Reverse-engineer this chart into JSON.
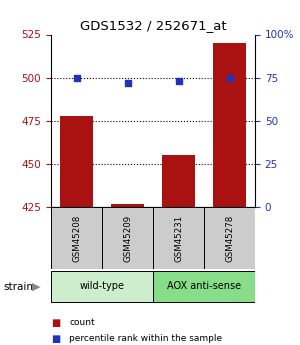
{
  "title": "GDS1532 / 252671_at",
  "samples": [
    "GSM45208",
    "GSM45209",
    "GSM45231",
    "GSM45278"
  ],
  "counts": [
    478,
    427,
    455,
    520
  ],
  "percentiles": [
    75,
    72,
    73,
    75
  ],
  "ylim_left": [
    425,
    525
  ],
  "ylim_right": [
    0,
    100
  ],
  "yticks_left": [
    425,
    450,
    475,
    500,
    525
  ],
  "yticks_right": [
    0,
    25,
    50,
    75,
    100
  ],
  "ytick_labels_right": [
    "0",
    "25",
    "50",
    "75",
    "100%"
  ],
  "bar_color": "#aa1111",
  "scatter_color": "#2233bb",
  "wild_type_color": "#cceecc",
  "aox_color": "#88dd88",
  "sample_box_color": "#cccccc",
  "strain_labels": [
    "wild-type",
    "AOX anti-sense"
  ],
  "legend_count_label": "count",
  "legend_percentile_label": "percentile rank within the sample",
  "strain_label": "strain",
  "bar_width": 0.65
}
